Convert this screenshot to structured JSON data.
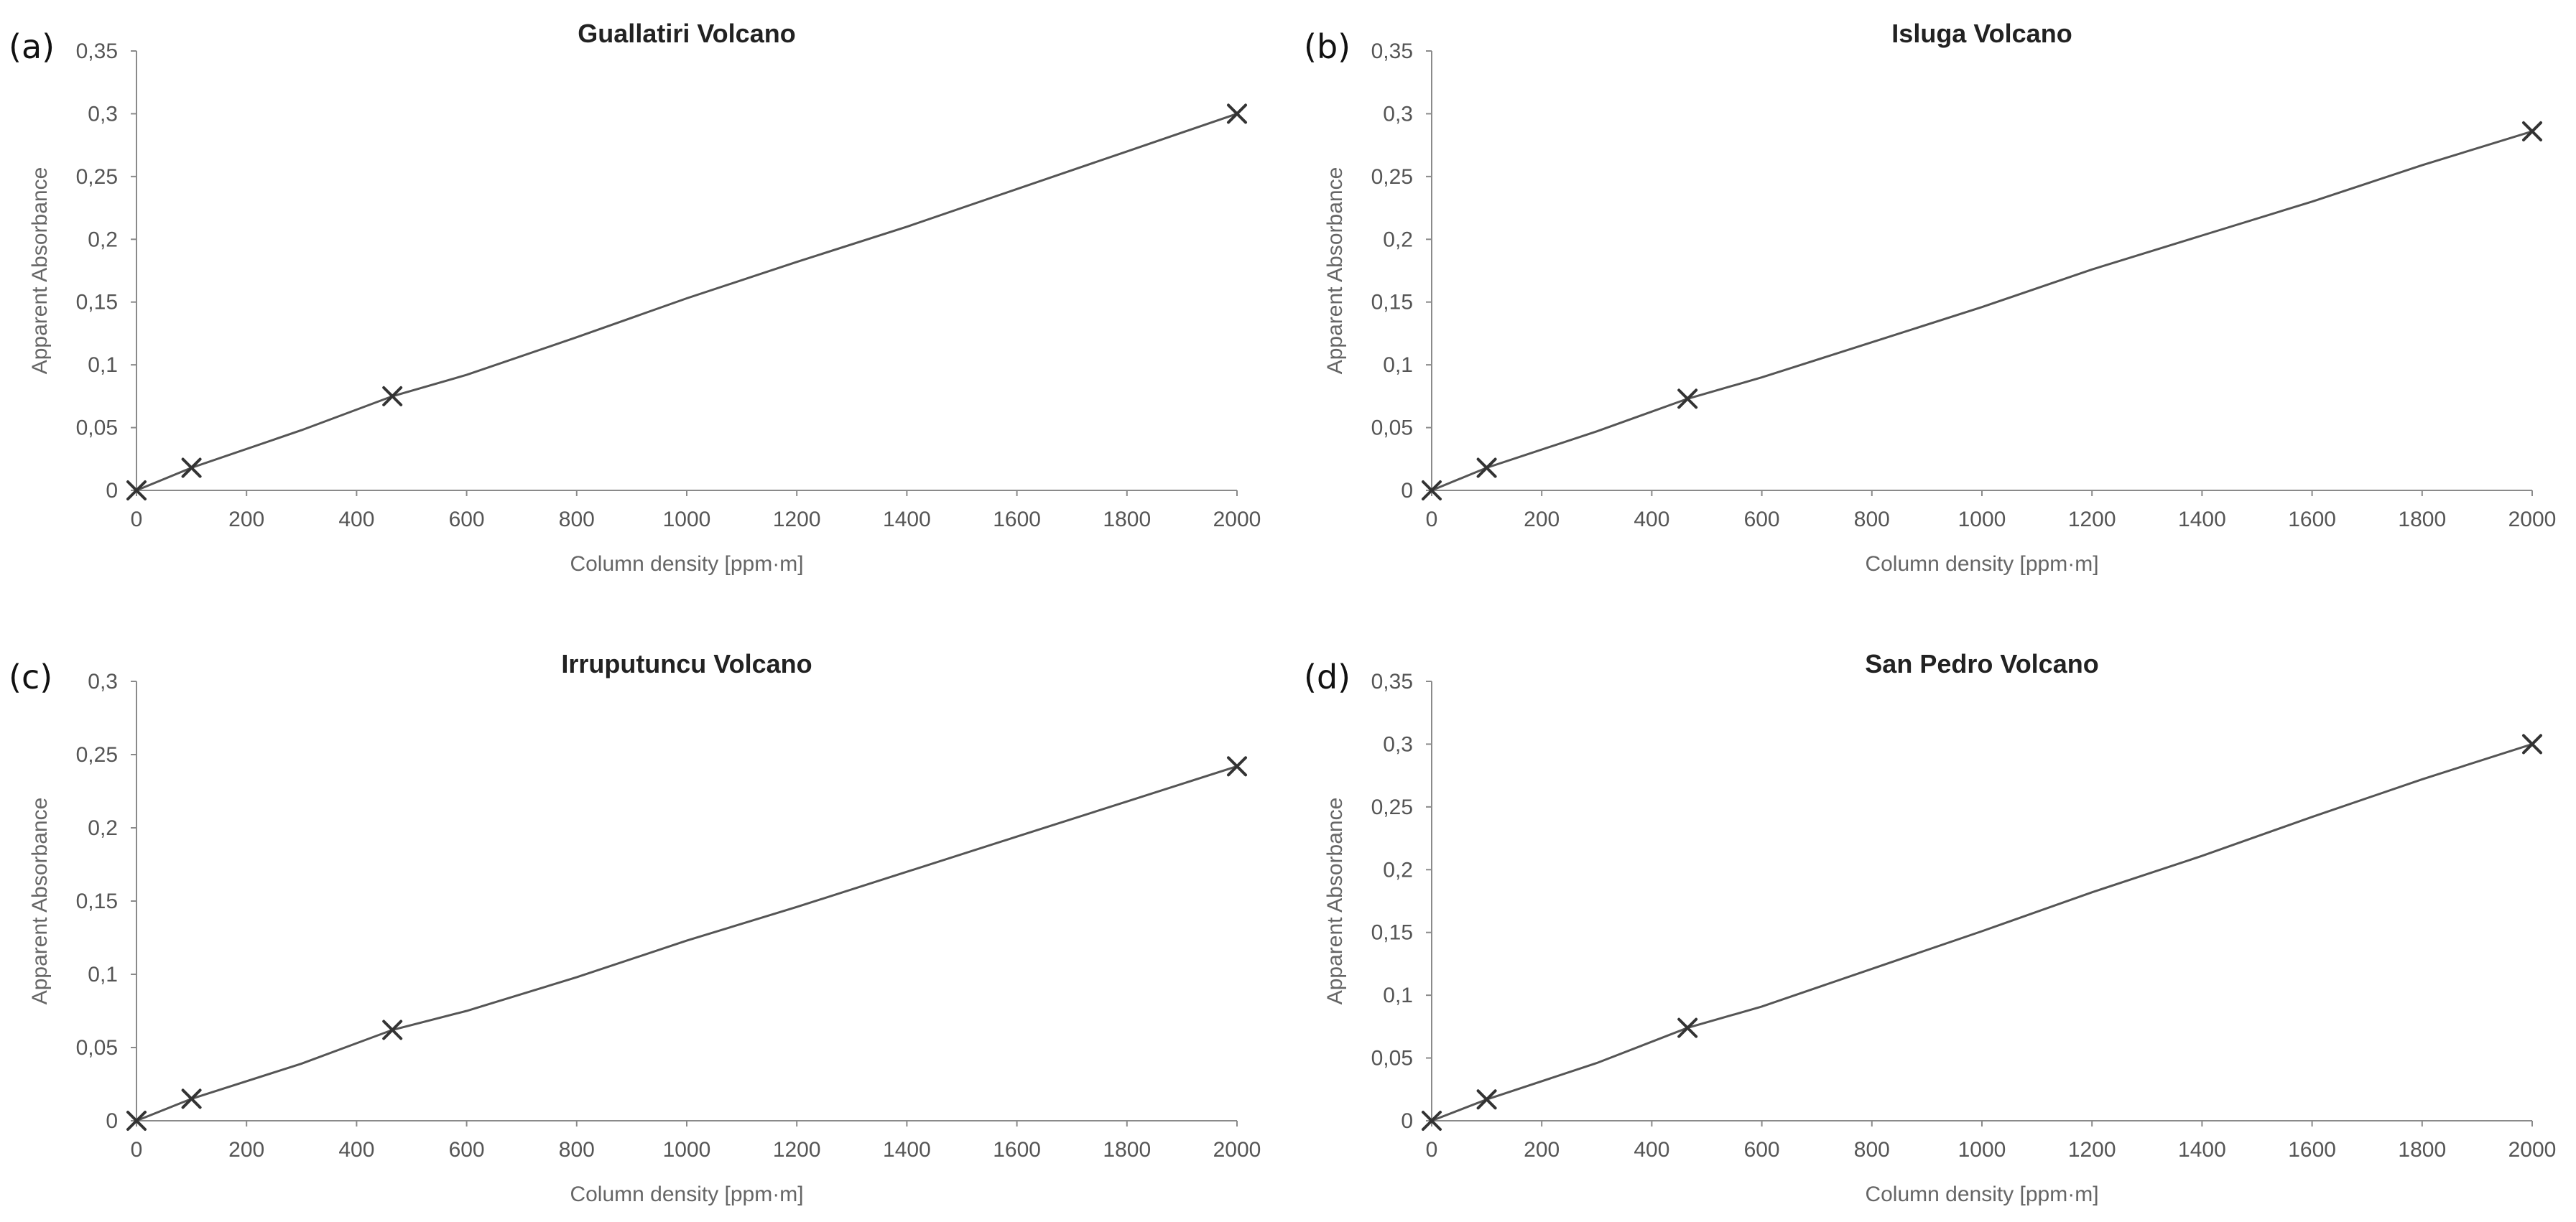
{
  "chart_data": [
    {
      "panel": "(a)",
      "type": "line",
      "title": "Guallatiri Volcano",
      "xlabel": "Column density [ppm·m]",
      "ylabel": "Apparent Absorbance",
      "xlim": [
        0,
        2000
      ],
      "ylim": [
        0,
        0.35
      ],
      "xticks": [
        0,
        200,
        400,
        600,
        800,
        1000,
        1200,
        1400,
        1600,
        1800,
        2000
      ],
      "xtick_labels": [
        "0",
        "200",
        "400",
        "600",
        "800",
        "1000",
        "1200",
        "1400",
        "1600",
        "1800",
        "2000"
      ],
      "yticks": [
        0,
        0.05,
        0.1,
        0.15,
        0.2,
        0.25,
        0.3,
        0.35
      ],
      "ytick_labels": [
        "0",
        "0,05",
        "0,1",
        "0,15",
        "0,2",
        "0,25",
        "0,3",
        "0,35"
      ],
      "grid": false,
      "curve": {
        "x": [
          0,
          100,
          300,
          465,
          600,
          800,
          1000,
          1200,
          1400,
          1600,
          1800,
          2000
        ],
        "y": [
          0,
          0.018,
          0.048,
          0.075,
          0.092,
          0.122,
          0.153,
          0.182,
          0.21,
          0.24,
          0.27,
          0.3
        ]
      },
      "markers": {
        "x": [
          0,
          100,
          465,
          2000
        ],
        "y": [
          0,
          0.018,
          0.075,
          0.3
        ]
      }
    },
    {
      "panel": "(b)",
      "type": "line",
      "title": "Isluga Volcano",
      "xlabel": "Column density [ppm·m]",
      "ylabel": "Apparent Absorbance",
      "xlim": [
        0,
        2000
      ],
      "ylim": [
        0,
        0.35
      ],
      "xticks": [
        0,
        200,
        400,
        600,
        800,
        1000,
        1200,
        1400,
        1600,
        1800,
        2000
      ],
      "xtick_labels": [
        "0",
        "200",
        "400",
        "600",
        "800",
        "1000",
        "1200",
        "1400",
        "1600",
        "1800",
        "2000"
      ],
      "yticks": [
        0,
        0.05,
        0.1,
        0.15,
        0.2,
        0.25,
        0.3,
        0.35
      ],
      "ytick_labels": [
        "0",
        "0,05",
        "0,1",
        "0,15",
        "0,2",
        "0,25",
        "0,3",
        "0,35"
      ],
      "grid": false,
      "curve": {
        "x": [
          0,
          100,
          300,
          465,
          600,
          800,
          1000,
          1200,
          1400,
          1600,
          1800,
          2000
        ],
        "y": [
          0,
          0.018,
          0.047,
          0.073,
          0.09,
          0.118,
          0.146,
          0.176,
          0.203,
          0.23,
          0.259,
          0.286
        ]
      },
      "markers": {
        "x": [
          0,
          100,
          465,
          2000
        ],
        "y": [
          0,
          0.018,
          0.073,
          0.286
        ]
      }
    },
    {
      "panel": "(c)",
      "type": "line",
      "title": "Irruputuncu Volcano",
      "xlabel": "Column density [ppm·m]",
      "ylabel": "Apparent Absorbance",
      "xlim": [
        0,
        2000
      ],
      "ylim": [
        0,
        0.3
      ],
      "xticks": [
        0,
        200,
        400,
        600,
        800,
        1000,
        1200,
        1400,
        1600,
        1800,
        2000
      ],
      "xtick_labels": [
        "0",
        "200",
        "400",
        "600",
        "800",
        "1000",
        "1200",
        "1400",
        "1600",
        "1800",
        "2000"
      ],
      "yticks": [
        0,
        0.05,
        0.1,
        0.15,
        0.2,
        0.25,
        0.3
      ],
      "ytick_labels": [
        "0",
        "0,05",
        "0,1",
        "0,15",
        "0,2",
        "0,25",
        "0,3"
      ],
      "grid": false,
      "curve": {
        "x": [
          0,
          100,
          300,
          465,
          600,
          800,
          1000,
          1200,
          1400,
          1600,
          1800,
          2000
        ],
        "y": [
          0,
          0.015,
          0.039,
          0.062,
          0.075,
          0.098,
          0.123,
          0.146,
          0.17,
          0.194,
          0.218,
          0.242
        ]
      },
      "markers": {
        "x": [
          0,
          100,
          465,
          2000
        ],
        "y": [
          0,
          0.015,
          0.062,
          0.242
        ]
      }
    },
    {
      "panel": "(d)",
      "type": "line",
      "title": "San Pedro Volcano",
      "xlabel": "Column density [ppm·m]",
      "ylabel": "Apparent Absorbance",
      "xlim": [
        0,
        2000
      ],
      "ylim": [
        0,
        0.35
      ],
      "xticks": [
        0,
        200,
        400,
        600,
        800,
        1000,
        1200,
        1400,
        1600,
        1800,
        2000
      ],
      "xtick_labels": [
        "0",
        "200",
        "400",
        "600",
        "800",
        "1000",
        "1200",
        "1400",
        "1600",
        "1800",
        "2000"
      ],
      "yticks": [
        0,
        0.05,
        0.1,
        0.15,
        0.2,
        0.25,
        0.3,
        0.35
      ],
      "ytick_labels": [
        "0",
        "0,05",
        "0,1",
        "0,15",
        "0,2",
        "0,25",
        "0,3",
        "0,35"
      ],
      "grid": false,
      "curve": {
        "x": [
          0,
          100,
          300,
          465,
          600,
          800,
          1000,
          1200,
          1400,
          1600,
          1800,
          2000
        ],
        "y": [
          0,
          0.017,
          0.046,
          0.074,
          0.091,
          0.121,
          0.151,
          0.182,
          0.211,
          0.242,
          0.272,
          0.3
        ]
      },
      "markers": {
        "x": [
          0,
          100,
          465,
          2000
        ],
        "y": [
          0,
          0.017,
          0.074,
          0.3
        ]
      }
    }
  ]
}
